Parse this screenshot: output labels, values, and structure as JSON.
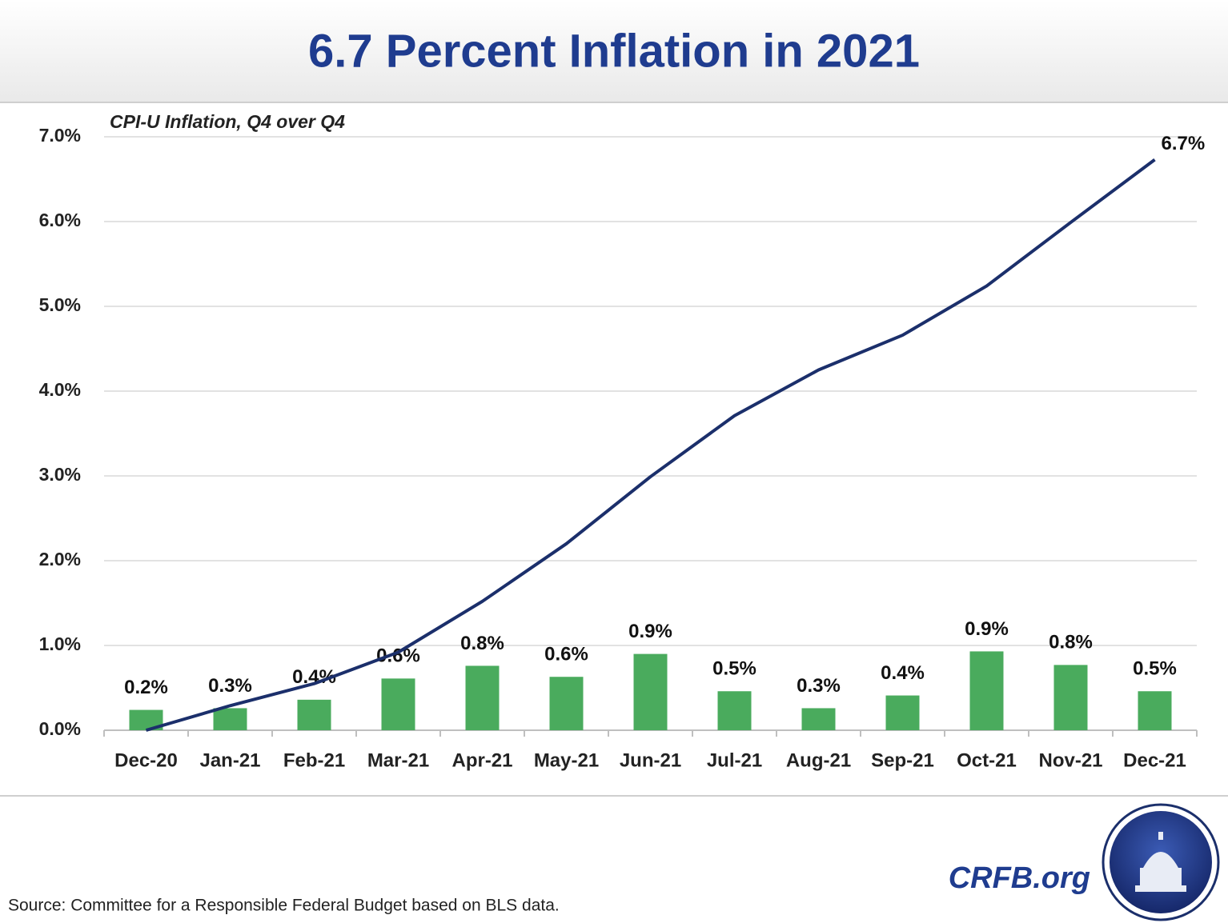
{
  "chart_data": {
    "type": "bar",
    "title": "6.7 Percent Inflation in 2021",
    "subtitle": "CPI-U Inflation, Q4 over Q4",
    "source": "Source: Committee for a Responsible Federal Budget based on BLS data.",
    "brand": "CRFB.org",
    "categories": [
      "Dec-20",
      "Jan-21",
      "Feb-21",
      "Mar-21",
      "Apr-21",
      "May-21",
      "Jun-21",
      "Jul-21",
      "Aug-21",
      "Sep-21",
      "Oct-21",
      "Nov-21",
      "Dec-21"
    ],
    "series": [
      {
        "type": "bar",
        "color": "#4aab5d",
        "values": [
          0.24,
          0.26,
          0.36,
          0.61,
          0.76,
          0.63,
          0.9,
          0.46,
          0.26,
          0.41,
          0.93,
          0.77,
          0.46
        ],
        "value_labels": [
          "0.2%",
          "0.3%",
          "0.4%",
          "0.6%",
          "0.8%",
          "0.6%",
          "0.9%",
          "0.5%",
          "0.3%",
          "0.4%",
          "0.9%",
          "0.8%",
          "0.5%"
        ]
      },
      {
        "type": "line",
        "color": "#1b2f6b",
        "values": [
          0.0,
          0.29,
          0.55,
          0.92,
          1.52,
          2.2,
          2.99,
          3.71,
          4.25,
          4.66,
          5.24,
          5.99,
          6.73
        ],
        "value_labels": [
          null,
          null,
          null,
          null,
          null,
          null,
          null,
          null,
          null,
          null,
          null,
          null,
          "6.7%"
        ]
      }
    ],
    "ylim": [
      0,
      7
    ],
    "yticks": [
      {
        "value": 0,
        "label": "0.0%"
      },
      {
        "value": 1,
        "label": "1.0%"
      },
      {
        "value": 2,
        "label": "2.0%"
      },
      {
        "value": 3,
        "label": "3.0%"
      },
      {
        "value": 4,
        "label": "4.0%"
      },
      {
        "value": 5,
        "label": "5.0%"
      },
      {
        "value": 6,
        "label": "6.0%"
      },
      {
        "value": 7,
        "label": "7.0%"
      }
    ],
    "grid": true
  }
}
